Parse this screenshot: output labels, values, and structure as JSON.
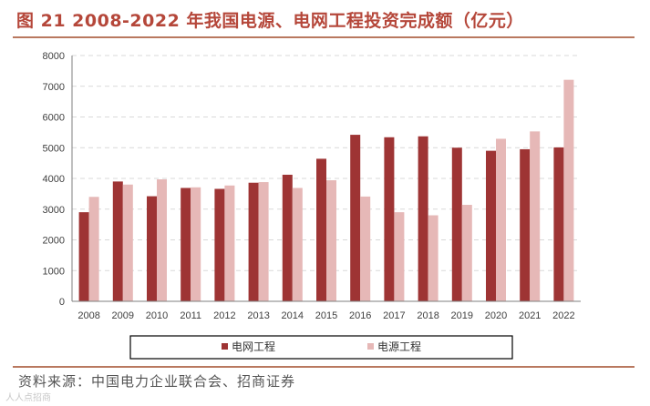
{
  "header": {
    "title": "图 21 2008-2022 年我国电源、电网工程投资完成额（亿元）"
  },
  "footer": {
    "source": "资料来源：中国电力企业联合会、招商证券",
    "watermark": "人人点招商"
  },
  "colors": {
    "grid": "#d9d9d9",
    "axis": "#7f7f7f",
    "series_1": "#9e3434",
    "series_2": "#e6b8b7"
  },
  "chart_data": {
    "type": "bar",
    "categories": [
      "2008",
      "2009",
      "2010",
      "2011",
      "2012",
      "2013",
      "2014",
      "2015",
      "2016",
      "2017",
      "2018",
      "2019",
      "2020",
      "2021",
      "2022"
    ],
    "series": [
      {
        "name": "电网工程",
        "color": "#9e3434",
        "values": [
          2900,
          3900,
          3420,
          3690,
          3660,
          3860,
          4120,
          4640,
          5420,
          5340,
          5370,
          5000,
          4900,
          4950,
          5010
        ]
      },
      {
        "name": "电源工程",
        "color": "#e6b8b7",
        "values": [
          3400,
          3800,
          3970,
          3710,
          3770,
          3880,
          3690,
          3940,
          3410,
          2900,
          2800,
          3140,
          5290,
          5530,
          7210
        ]
      }
    ],
    "ylim": [
      0,
      8000
    ],
    "yticks": [
      0,
      1000,
      2000,
      3000,
      4000,
      5000,
      6000,
      7000,
      8000
    ],
    "grid": "horizontal dashed",
    "legend": "bottom"
  }
}
